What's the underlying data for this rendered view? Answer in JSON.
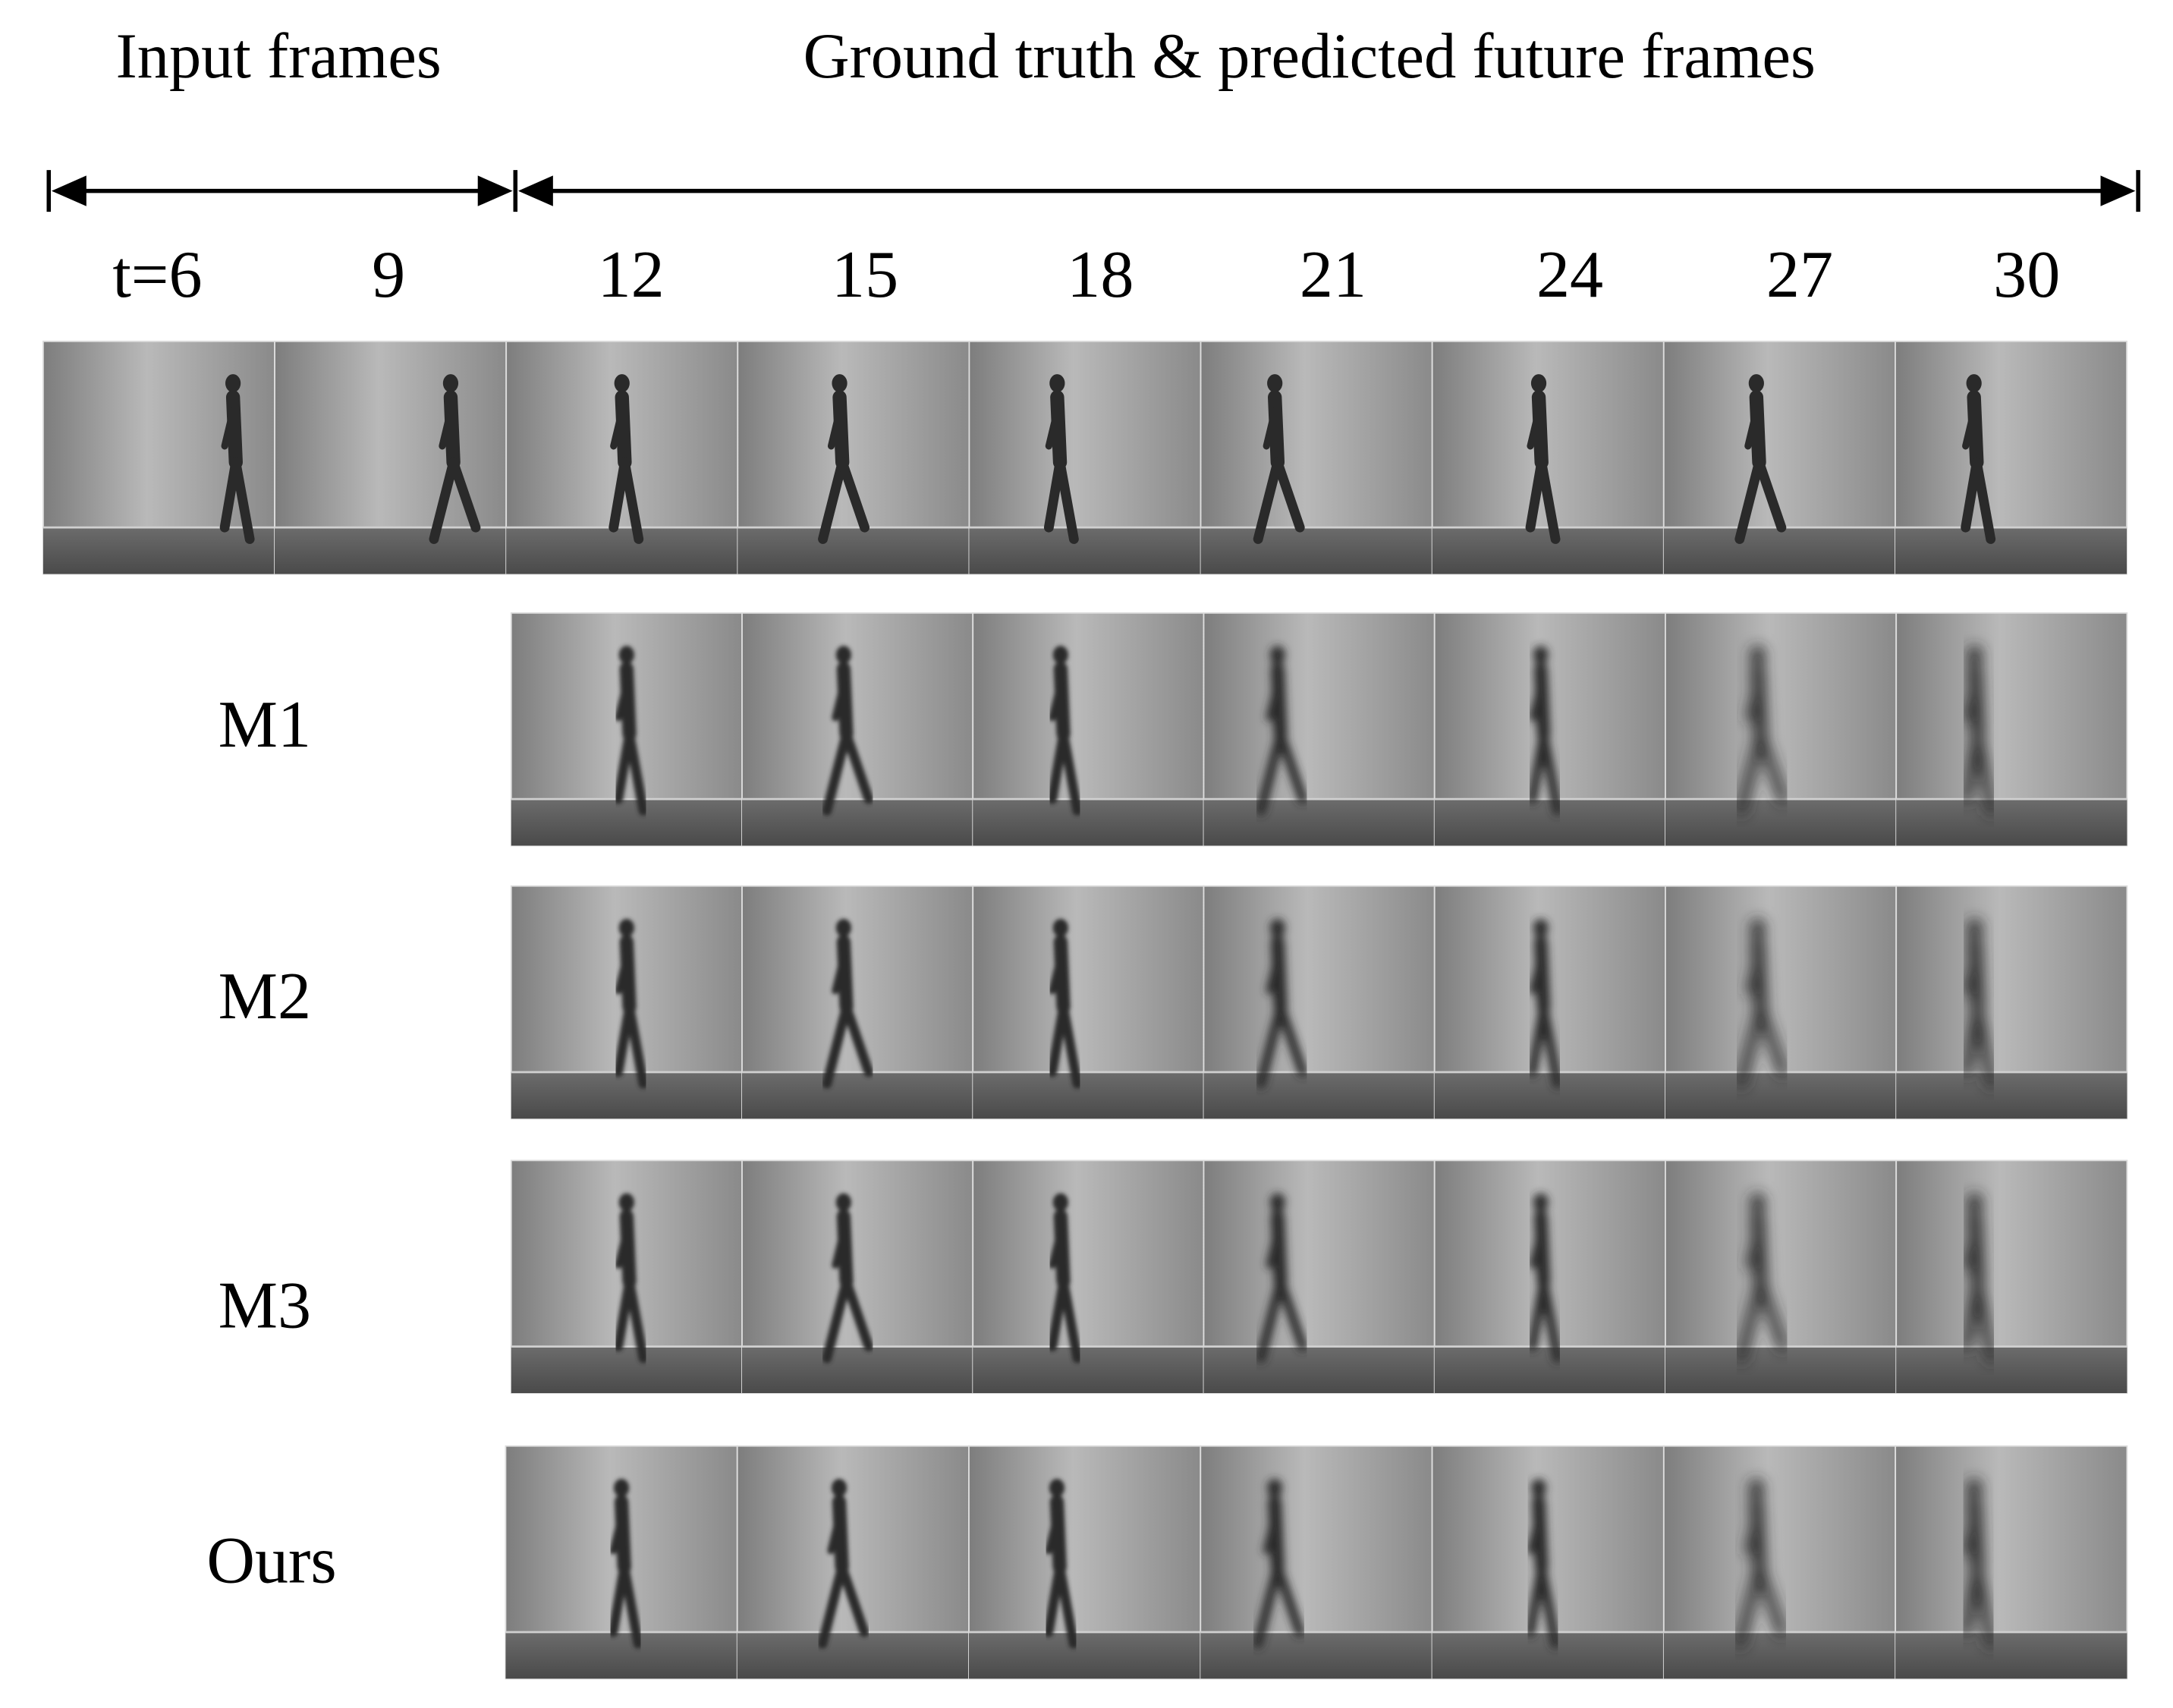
{
  "header": {
    "input_label": "Input frames",
    "future_label": "Ground truth & predicted future frames"
  },
  "time_labels": [
    "t=6",
    "9",
    "12",
    "15",
    "18",
    "21",
    "24",
    "27",
    "30"
  ],
  "methods": [
    "M1",
    "M2",
    "M3",
    "Ours"
  ]
}
